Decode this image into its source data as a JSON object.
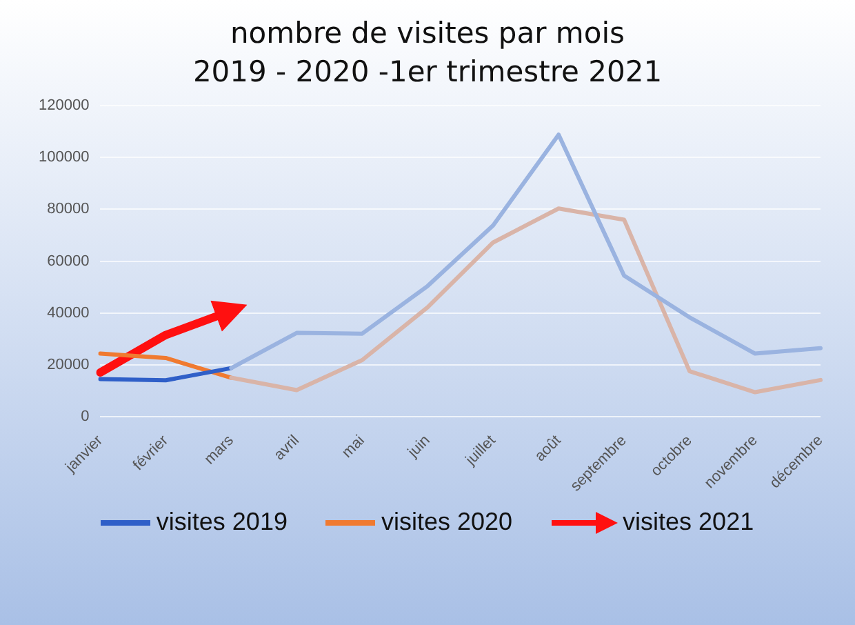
{
  "chart_data": {
    "type": "line",
    "title": "nombre de visites par mois",
    "subtitle": "2019 - 2020 -1er trimestre 2021",
    "categories": [
      "janvier",
      "février",
      "mars",
      "avril",
      "mai",
      "juin",
      "juillet",
      "août",
      "septembre",
      "octobre",
      "novembre",
      "décembre"
    ],
    "series": [
      {
        "color": "#9ab3e0",
        "values": [
          null,
          null,
          18700,
          32300,
          32000,
          50400,
          73800,
          108800,
          54400,
          38300,
          24300,
          26400
        ]
      },
      {
        "color": "#d9b4a8",
        "values": [
          null,
          null,
          15000,
          10200,
          21800,
          42200,
          67200,
          80300,
          76000,
          17500,
          9400,
          14100
        ]
      },
      {
        "name": "visites 2019",
        "color": "#2f5fc8",
        "values": [
          14500,
          14000,
          18700,
          null,
          null,
          null,
          null,
          null,
          null,
          null,
          null,
          null
        ]
      },
      {
        "name": "visites 2020",
        "color": "#f07a30",
        "values": [
          24300,
          22600,
          15000,
          null,
          null,
          null,
          null,
          null,
          null,
          null,
          null,
          null
        ]
      },
      {
        "name": "visites 2021",
        "color": "#ff1010",
        "values": [
          17000,
          31500,
          40800,
          null,
          null,
          null,
          null,
          null,
          null,
          null,
          null,
          null
        ]
      }
    ],
    "ylim": [
      0,
      120000
    ],
    "yticks": [
      0,
      20000,
      40000,
      60000,
      80000,
      100000,
      120000
    ],
    "grid": "y",
    "legend": "bottom",
    "marker": "none",
    "line_style": "solid"
  }
}
